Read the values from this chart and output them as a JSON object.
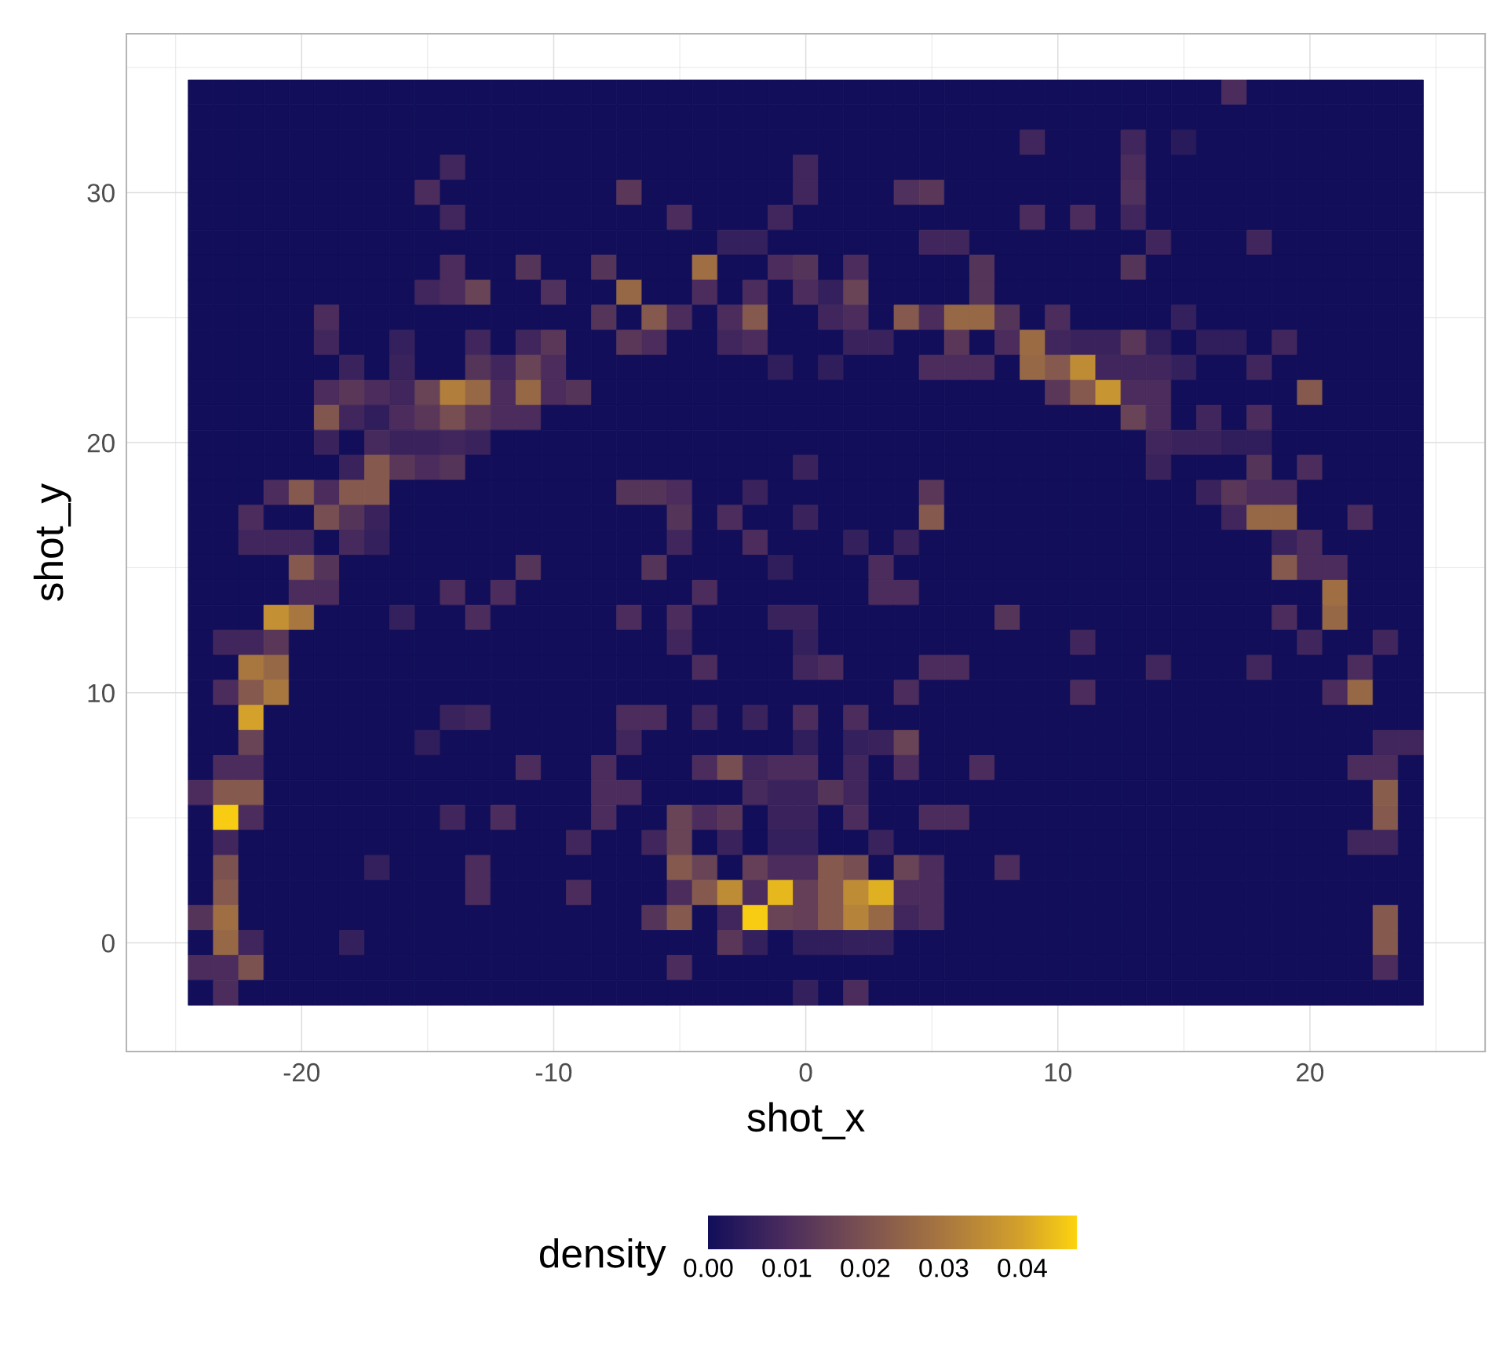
{
  "chart_data": {
    "type": "heatmap",
    "xlabel": "shot_x",
    "ylabel": "shot_y",
    "clabel": "density",
    "categories": [
      null,
      null,
      null,
      null,
      "-20",
      null,
      null,
      null,
      null,
      null,
      null,
      null,
      null,
      null,
      "-10",
      null,
      null,
      null,
      null,
      null,
      null,
      null,
      null,
      null,
      "0",
      null,
      null,
      null,
      null,
      null,
      null,
      null,
      null,
      null,
      "10",
      null,
      null,
      null,
      null,
      null,
      null,
      null,
      null,
      null,
      "20",
      null,
      null,
      null,
      null
    ],
    "y_categories": [
      null,
      null,
      null,
      null,
      "30",
      null,
      null,
      null,
      null,
      null,
      null,
      null,
      null,
      null,
      "20",
      null,
      null,
      null,
      null,
      null,
      null,
      null,
      null,
      null,
      "10",
      null,
      null,
      null,
      null,
      null,
      null,
      null,
      null,
      null,
      "0",
      null,
      null
    ],
    "cells": [
      [
        0,
        0,
        0,
        0,
        0,
        0,
        0,
        0,
        0,
        0,
        0,
        0,
        0,
        0,
        0,
        0,
        0,
        0,
        0,
        0,
        0,
        0,
        0,
        0,
        0,
        0,
        0,
        0,
        0,
        0,
        0,
        0,
        0,
        0,
        0,
        0,
        0,
        0,
        0,
        0,
        0,
        0.01,
        0,
        0,
        0,
        0,
        0,
        0,
        0
      ],
      [
        0,
        0,
        0,
        0,
        0,
        0,
        0,
        0,
        0,
        0,
        0,
        0,
        0,
        0,
        0,
        0,
        0,
        0,
        0,
        0,
        0,
        0,
        0,
        0,
        0,
        0,
        0,
        0,
        0,
        0,
        0,
        0,
        0,
        0,
        0,
        0,
        0,
        0,
        0,
        0,
        0,
        0,
        0,
        0,
        0,
        0,
        0,
        0,
        0
      ],
      [
        0,
        0,
        0,
        0,
        0,
        0,
        0,
        0,
        0,
        0,
        0,
        0,
        0,
        0,
        0,
        0,
        0,
        0,
        0,
        0,
        0,
        0,
        0,
        0,
        0,
        0,
        0,
        0,
        0,
        0,
        0,
        0,
        0,
        0.008,
        0,
        0,
        0,
        0.008,
        0,
        0.004,
        0,
        0,
        0,
        0,
        0,
        0,
        0,
        0,
        0
      ],
      [
        0,
        0,
        0,
        0,
        0,
        0,
        0,
        0,
        0,
        0,
        0.008,
        0,
        0,
        0,
        0,
        0,
        0,
        0,
        0,
        0,
        0,
        0,
        0,
        0,
        0.008,
        0,
        0,
        0,
        0,
        0,
        0,
        0,
        0,
        0,
        0,
        0,
        0,
        0.01,
        0,
        0,
        0,
        0,
        0,
        0,
        0,
        0,
        0,
        0,
        0
      ],
      [
        0,
        0,
        0,
        0,
        0,
        0,
        0,
        0,
        0,
        0.01,
        0,
        0,
        0,
        0,
        0,
        0,
        0,
        0.013,
        0,
        0,
        0,
        0,
        0,
        0,
        0.008,
        0,
        0,
        0,
        0.011,
        0.013,
        0,
        0,
        0,
        0,
        0,
        0,
        0,
        0.011,
        0,
        0,
        0,
        0,
        0,
        0,
        0,
        0,
        0,
        0,
        0
      ],
      [
        0,
        0,
        0,
        0,
        0,
        0,
        0,
        0,
        0,
        0,
        0.008,
        0,
        0,
        0,
        0,
        0,
        0,
        0,
        0,
        0.01,
        0,
        0,
        0,
        0.008,
        0,
        0,
        0,
        0,
        0,
        0,
        0,
        0,
        0,
        0.01,
        0,
        0.01,
        0,
        0.008,
        0,
        0,
        0,
        0,
        0,
        0,
        0,
        0,
        0,
        0,
        0
      ],
      [
        0,
        0,
        0,
        0,
        0,
        0,
        0,
        0,
        0,
        0,
        0,
        0,
        0,
        0,
        0,
        0,
        0,
        0,
        0,
        0,
        0,
        0.006,
        0.006,
        0,
        0,
        0,
        0,
        0,
        0,
        0.008,
        0.008,
        0,
        0,
        0,
        0,
        0,
        0,
        0,
        0.008,
        0,
        0,
        0,
        0.008,
        0,
        0,
        0,
        0,
        0,
        0
      ],
      [
        0,
        0,
        0,
        0,
        0,
        0,
        0,
        0,
        0,
        0,
        0.01,
        0,
        0,
        0.012,
        0,
        0,
        0.012,
        0,
        0,
        0,
        0.028,
        0,
        0,
        0.01,
        0.012,
        0,
        0.01,
        0,
        0,
        0,
        0,
        0.012,
        0,
        0,
        0,
        0,
        0,
        0.012,
        0,
        0,
        0,
        0,
        0,
        0,
        0,
        0,
        0,
        0,
        0
      ],
      [
        0,
        0,
        0,
        0,
        0,
        0,
        0,
        0,
        0,
        0.008,
        0.01,
        0.016,
        0,
        0,
        0.011,
        0,
        0,
        0.026,
        0,
        0,
        0.01,
        0,
        0.01,
        0,
        0.01,
        0.006,
        0.016,
        0,
        0,
        0,
        0,
        0.012,
        0,
        0,
        0,
        0,
        0,
        0,
        0,
        0,
        0,
        0,
        0,
        0,
        0,
        0,
        0,
        0,
        0
      ],
      [
        0,
        0,
        0,
        0,
        0,
        0.01,
        0,
        0,
        0,
        0,
        0,
        0,
        0,
        0,
        0,
        0,
        0.012,
        0,
        0.022,
        0.01,
        0,
        0.01,
        0.022,
        0,
        0,
        0.008,
        0.01,
        0,
        0.022,
        0.01,
        0.026,
        0.026,
        0.012,
        0,
        0.01,
        0,
        0,
        0,
        0,
        0.006,
        0,
        0,
        0,
        0,
        0,
        0,
        0,
        0,
        0
      ],
      [
        0,
        0,
        0,
        0,
        0,
        0.008,
        0,
        0,
        0.006,
        0,
        0,
        0.008,
        0,
        0.008,
        0.013,
        0,
        0,
        0.013,
        0.01,
        0,
        0,
        0.008,
        0.01,
        0,
        0,
        0,
        0.007,
        0.007,
        0,
        0,
        0.013,
        0,
        0.01,
        0.027,
        0.008,
        0.007,
        0.007,
        0.013,
        0.005,
        0,
        0.005,
        0.005,
        0,
        0.008,
        0,
        0,
        0,
        0,
        0
      ],
      [
        0,
        0,
        0,
        0,
        0,
        0,
        0.007,
        0,
        0.007,
        0,
        0,
        0.012,
        0.008,
        0.016,
        0.01,
        0,
        0,
        0,
        0,
        0,
        0,
        0,
        0,
        0.005,
        0,
        0.005,
        0,
        0,
        0,
        0.01,
        0.01,
        0.01,
        0,
        0.026,
        0.022,
        0.035,
        0.008,
        0.008,
        0.008,
        0.006,
        0,
        0,
        0.008,
        0,
        0,
        0,
        0,
        0,
        0
      ],
      [
        0,
        0,
        0,
        0,
        0,
        0.01,
        0.013,
        0.01,
        0.008,
        0.016,
        0.032,
        0.026,
        0.01,
        0.026,
        0.01,
        0.012,
        0,
        0,
        0,
        0,
        0,
        0,
        0,
        0,
        0,
        0,
        0,
        0,
        0,
        0,
        0,
        0,
        0,
        0,
        0.013,
        0.022,
        0.037,
        0.01,
        0.01,
        0,
        0,
        0,
        0,
        0,
        0.022,
        0,
        0,
        0,
        0
      ],
      [
        0,
        0,
        0,
        0,
        0,
        0.021,
        0.008,
        0.005,
        0.01,
        0.013,
        0.019,
        0.013,
        0.01,
        0.01,
        0,
        0,
        0,
        0,
        0,
        0,
        0,
        0,
        0,
        0,
        0,
        0,
        0,
        0,
        0,
        0,
        0,
        0,
        0,
        0,
        0,
        0,
        0,
        0.016,
        0.01,
        0,
        0.008,
        0,
        0.01,
        0,
        0,
        0,
        0,
        0,
        0
      ],
      [
        0,
        0,
        0,
        0,
        0,
        0.007,
        0,
        0.009,
        0.007,
        0.007,
        0.008,
        0.007,
        0,
        0,
        0,
        0,
        0,
        0,
        0,
        0,
        0,
        0,
        0,
        0,
        0,
        0,
        0,
        0,
        0,
        0,
        0,
        0,
        0,
        0,
        0,
        0,
        0,
        0,
        0.008,
        0.007,
        0.007,
        0.005,
        0.005,
        0,
        0,
        0,
        0,
        0,
        0
      ],
      [
        0,
        0,
        0,
        0,
        0,
        0,
        0.007,
        0.022,
        0.013,
        0.01,
        0.012,
        0,
        0,
        0,
        0,
        0,
        0,
        0,
        0,
        0,
        0,
        0,
        0,
        0,
        0.007,
        0,
        0,
        0,
        0,
        0,
        0,
        0,
        0,
        0,
        0,
        0,
        0,
        0,
        0.007,
        0,
        0,
        0,
        0.012,
        0,
        0.01,
        0,
        0,
        0,
        0
      ],
      [
        0,
        0,
        0,
        0.01,
        0.022,
        0.01,
        0.022,
        0.022,
        0,
        0,
        0,
        0,
        0,
        0,
        0,
        0,
        0,
        0.012,
        0.012,
        0.01,
        0,
        0,
        0.007,
        0,
        0,
        0,
        0,
        0,
        0,
        0.013,
        0,
        0,
        0,
        0,
        0,
        0,
        0,
        0,
        0,
        0,
        0.007,
        0.013,
        0.01,
        0.01,
        0,
        0,
        0,
        0,
        0
      ],
      [
        0,
        0,
        0.01,
        0,
        0,
        0.019,
        0.012,
        0.007,
        0,
        0,
        0,
        0,
        0,
        0,
        0,
        0,
        0,
        0,
        0,
        0.012,
        0,
        0.01,
        0,
        0,
        0.007,
        0,
        0,
        0,
        0,
        0.022,
        0,
        0,
        0,
        0,
        0,
        0,
        0,
        0,
        0,
        0,
        0,
        0.008,
        0.026,
        0.026,
        0,
        0,
        0.01,
        0,
        0
      ],
      [
        0,
        0,
        0.008,
        0.008,
        0.008,
        0,
        0.009,
        0.006,
        0,
        0,
        0,
        0,
        0,
        0,
        0,
        0,
        0,
        0,
        0,
        0.008,
        0,
        0,
        0.01,
        0,
        0,
        0,
        0.006,
        0,
        0.007,
        0,
        0,
        0,
        0,
        0,
        0,
        0,
        0,
        0,
        0,
        0,
        0,
        0,
        0,
        0.007,
        0.01,
        0,
        0,
        0,
        0
      ],
      [
        0,
        0,
        0,
        0,
        0.022,
        0.012,
        0,
        0,
        0,
        0,
        0,
        0,
        0,
        0.012,
        0,
        0,
        0,
        0,
        0.012,
        0,
        0,
        0,
        0,
        0.005,
        0,
        0,
        0,
        0.01,
        0,
        0,
        0,
        0,
        0,
        0,
        0,
        0,
        0,
        0,
        0,
        0,
        0,
        0,
        0,
        0.022,
        0.01,
        0.01,
        0,
        0,
        0
      ],
      [
        0,
        0,
        0,
        0,
        0.01,
        0.01,
        0,
        0,
        0,
        0,
        0.01,
        0,
        0.01,
        0,
        0,
        0,
        0,
        0,
        0,
        0,
        0.01,
        0,
        0,
        0,
        0,
        0,
        0,
        0.01,
        0.01,
        0,
        0,
        0,
        0,
        0,
        0,
        0,
        0,
        0,
        0,
        0,
        0,
        0,
        0,
        0,
        0,
        0.028,
        0,
        0,
        0
      ],
      [
        0,
        0,
        0,
        0.036,
        0.03,
        0,
        0,
        0,
        0.006,
        0,
        0,
        0.01,
        0,
        0,
        0,
        0,
        0,
        0.01,
        0,
        0.01,
        0,
        0,
        0,
        0.007,
        0.007,
        0,
        0,
        0,
        0,
        0,
        0,
        0,
        0.012,
        0,
        0,
        0,
        0,
        0,
        0,
        0,
        0,
        0,
        0,
        0.01,
        0,
        0.026,
        0,
        0,
        0
      ],
      [
        0,
        0.008,
        0.008,
        0.013,
        0,
        0,
        0,
        0,
        0,
        0,
        0,
        0,
        0,
        0,
        0,
        0,
        0,
        0,
        0,
        0.008,
        0,
        0,
        0,
        0,
        0.006,
        0,
        0,
        0,
        0,
        0,
        0,
        0,
        0,
        0,
        0,
        0.008,
        0,
        0,
        0,
        0,
        0,
        0,
        0,
        0,
        0.008,
        0,
        0,
        0.008,
        0
      ],
      [
        0,
        0,
        0.03,
        0.026,
        0,
        0,
        0,
        0,
        0,
        0,
        0,
        0,
        0,
        0,
        0,
        0,
        0,
        0,
        0,
        0,
        0.01,
        0,
        0,
        0,
        0.008,
        0.01,
        0,
        0,
        0,
        0.01,
        0.01,
        0,
        0,
        0,
        0,
        0,
        0,
        0,
        0.008,
        0,
        0,
        0,
        0.008,
        0,
        0,
        0,
        0.01,
        0,
        0
      ],
      [
        0,
        0.01,
        0.022,
        0.03,
        0,
        0,
        0,
        0,
        0,
        0,
        0,
        0,
        0,
        0,
        0,
        0,
        0,
        0,
        0,
        0,
        0,
        0,
        0,
        0,
        0,
        0,
        0,
        0,
        0.01,
        0,
        0,
        0,
        0,
        0,
        0,
        0.01,
        0,
        0,
        0,
        0,
        0,
        0,
        0,
        0,
        0,
        0.01,
        0.026,
        0,
        0
      ],
      [
        0,
        0,
        0.04,
        0,
        0,
        0,
        0,
        0,
        0,
        0,
        0.007,
        0.008,
        0,
        0,
        0,
        0,
        0,
        0.01,
        0.01,
        0,
        0.008,
        0,
        0.007,
        0,
        0.01,
        0,
        0.01,
        0,
        0,
        0,
        0,
        0,
        0,
        0,
        0,
        0,
        0,
        0,
        0,
        0,
        0,
        0,
        0,
        0,
        0,
        0,
        0,
        0,
        0
      ],
      [
        0,
        0,
        0.016,
        0,
        0,
        0,
        0,
        0,
        0,
        0.005,
        0,
        0,
        0,
        0,
        0,
        0,
        0,
        0.008,
        0,
        0,
        0,
        0,
        0,
        0,
        0.005,
        0,
        0.006,
        0.007,
        0.016,
        0,
        0,
        0,
        0,
        0,
        0,
        0,
        0,
        0,
        0,
        0,
        0,
        0,
        0,
        0,
        0,
        0,
        0,
        0.008,
        0.008
      ],
      [
        0,
        0.01,
        0.01,
        0,
        0,
        0,
        0,
        0,
        0,
        0,
        0,
        0,
        0,
        0.01,
        0,
        0,
        0.01,
        0,
        0,
        0,
        0.01,
        0.019,
        0.008,
        0.01,
        0.01,
        0,
        0.008,
        0,
        0.01,
        0,
        0,
        0.01,
        0,
        0,
        0,
        0,
        0,
        0,
        0,
        0,
        0,
        0,
        0,
        0,
        0,
        0,
        0.01,
        0.01,
        0
      ],
      [
        0.01,
        0.022,
        0.022,
        0,
        0,
        0,
        0,
        0,
        0,
        0,
        0,
        0,
        0,
        0,
        0,
        0,
        0.01,
        0.01,
        0,
        0,
        0,
        0,
        0.009,
        0.007,
        0.007,
        0.012,
        0.008,
        0,
        0,
        0,
        0,
        0,
        0,
        0,
        0,
        0,
        0,
        0,
        0,
        0,
        0,
        0,
        0,
        0,
        0,
        0,
        0,
        0.023,
        0
      ],
      [
        0,
        0.046,
        0.01,
        0,
        0,
        0,
        0,
        0,
        0,
        0,
        0.008,
        0,
        0.01,
        0,
        0,
        0,
        0.01,
        0,
        0,
        0.016,
        0.01,
        0.013,
        0,
        0.007,
        0.007,
        0,
        0.01,
        0,
        0,
        0.01,
        0.01,
        0,
        0,
        0,
        0,
        0,
        0,
        0,
        0,
        0,
        0,
        0,
        0,
        0,
        0,
        0,
        0,
        0.022,
        0
      ],
      [
        0,
        0.008,
        0,
        0,
        0,
        0,
        0,
        0,
        0,
        0,
        0,
        0,
        0,
        0,
        0,
        0.008,
        0,
        0,
        0.008,
        0.016,
        0,
        0.007,
        0,
        0.006,
        0.006,
        0,
        0,
        0.007,
        0,
        0,
        0,
        0,
        0,
        0,
        0,
        0,
        0,
        0,
        0,
        0,
        0,
        0,
        0,
        0,
        0,
        0,
        0.008,
        0.008,
        0
      ],
      [
        0,
        0.02,
        0,
        0,
        0,
        0,
        0,
        0.006,
        0,
        0,
        0,
        0.01,
        0,
        0,
        0,
        0,
        0,
        0,
        0,
        0.022,
        0.016,
        0,
        0.015,
        0.01,
        0.01,
        0.022,
        0.019,
        0,
        0.016,
        0.01,
        0,
        0,
        0.01,
        0,
        0,
        0,
        0,
        0,
        0,
        0,
        0,
        0,
        0,
        0,
        0,
        0,
        0,
        0,
        0
      ],
      [
        0,
        0.022,
        0,
        0,
        0,
        0,
        0,
        0,
        0,
        0,
        0,
        0.01,
        0,
        0,
        0,
        0.01,
        0,
        0,
        0,
        0.01,
        0.022,
        0.035,
        0.01,
        0.043,
        0.015,
        0.022,
        0.035,
        0.042,
        0.01,
        0.01,
        0,
        0,
        0,
        0,
        0,
        0,
        0,
        0,
        0,
        0,
        0,
        0,
        0,
        0,
        0,
        0,
        0,
        0,
        0
      ],
      [
        0.012,
        0.028,
        0,
        0,
        0,
        0,
        0,
        0,
        0,
        0,
        0,
        0,
        0,
        0,
        0,
        0,
        0,
        0,
        0.012,
        0.022,
        0,
        0.008,
        0.046,
        0.016,
        0.015,
        0.022,
        0.033,
        0.026,
        0.008,
        0.01,
        0,
        0,
        0,
        0,
        0,
        0,
        0,
        0,
        0,
        0,
        0,
        0,
        0,
        0,
        0,
        0,
        0,
        0.022,
        0
      ],
      [
        0,
        0.026,
        0.008,
        0,
        0,
        0,
        0.006,
        0,
        0,
        0,
        0,
        0,
        0,
        0,
        0,
        0,
        0,
        0,
        0,
        0,
        0,
        0.013,
        0.006,
        0,
        0.005,
        0.005,
        0.006,
        0.006,
        0,
        0,
        0,
        0,
        0,
        0,
        0,
        0,
        0,
        0,
        0,
        0,
        0,
        0,
        0,
        0,
        0,
        0,
        0,
        0.022,
        0
      ],
      [
        0.01,
        0.01,
        0.02,
        0,
        0,
        0,
        0,
        0,
        0,
        0,
        0,
        0,
        0,
        0,
        0,
        0,
        0,
        0,
        0,
        0.01,
        0,
        0,
        0,
        0,
        0,
        0,
        0,
        0,
        0,
        0,
        0,
        0,
        0,
        0,
        0,
        0,
        0,
        0,
        0,
        0,
        0,
        0,
        0,
        0,
        0,
        0,
        0,
        0.01,
        0
      ],
      [
        0,
        0.01,
        0,
        0,
        0,
        0,
        0,
        0,
        0,
        0,
        0,
        0,
        0,
        0,
        0,
        0,
        0,
        0,
        0,
        0,
        0,
        0,
        0,
        0,
        0.006,
        0,
        0.01,
        0,
        0,
        0,
        0,
        0,
        0,
        0,
        0,
        0,
        0,
        0,
        0,
        0,
        0,
        0,
        0,
        0,
        0,
        0,
        0,
        0,
        0
      ]
    ],
    "clim": [
      0,
      0.047
    ],
    "cticks": [
      {
        "value": 0,
        "label": "0.00"
      },
      {
        "value": 0.01,
        "label": "0.01"
      },
      {
        "value": 0.02,
        "label": "0.02"
      },
      {
        "value": 0.03,
        "label": "0.03"
      },
      {
        "value": 0.04,
        "label": "0.04"
      }
    ],
    "grid": true
  }
}
